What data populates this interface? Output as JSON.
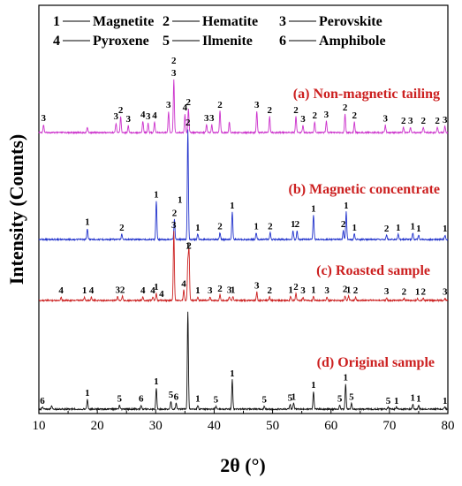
{
  "legend": {
    "row1": [
      {
        "num": "1",
        "name": "Magnetite"
      },
      {
        "num": "2",
        "name": "Hematite"
      },
      {
        "num": "3",
        "name": "Perovskite"
      }
    ],
    "row2": [
      {
        "num": "4",
        "name": "Pyroxene"
      },
      {
        "num": "5",
        "name": "Ilmenite"
      },
      {
        "num": "6",
        "name": "Amphibole"
      }
    ]
  },
  "chart_data": {
    "type": "line",
    "title": "",
    "xlabel": "2θ (°)",
    "ylabel": "Intensity (Counts)",
    "xlim": [
      10,
      80
    ],
    "xticks": [
      10,
      20,
      30,
      40,
      50,
      60,
      70,
      80
    ],
    "grid": false,
    "series": [
      {
        "name": "(a) Non-magnetic tailing",
        "color": "#cc33cc",
        "label_color": "#cc2020",
        "x": [
          10.8,
          18.3,
          23.2,
          24.0,
          25.3,
          27.8,
          28.7,
          29.8,
          32.2,
          33.1,
          35.0,
          35.6,
          38.7,
          39.6,
          41.0,
          42.6,
          47.3,
          49.5,
          54.0,
          55.2,
          57.2,
          59.2,
          62.4,
          64.0,
          69.3,
          72.4,
          73.6,
          75.8,
          78.2,
          79.5
        ],
        "height": [
          0.15,
          0.1,
          0.18,
          0.3,
          0.13,
          0.22,
          0.18,
          0.2,
          0.4,
          1.0,
          0.35,
          0.45,
          0.15,
          0.15,
          0.4,
          0.2,
          0.4,
          0.3,
          0.3,
          0.13,
          0.2,
          0.22,
          0.35,
          0.2,
          0.14,
          0.1,
          0.1,
          0.1,
          0.1,
          0.12
        ]
      },
      {
        "name": "(b) Magnetic concentrate",
        "color": "#2233cc",
        "label_color": "#cc2020",
        "x": [
          18.3,
          24.2,
          30.1,
          33.2,
          35.5,
          37.2,
          41.0,
          43.1,
          47.2,
          49.6,
          53.5,
          54.2,
          57.0,
          62.1,
          62.6,
          64.0,
          69.5,
          71.5,
          74.0,
          75.0,
          79.5
        ],
        "height": [
          0.1,
          0.05,
          0.35,
          0.18,
          1.0,
          0.05,
          0.06,
          0.25,
          0.06,
          0.06,
          0.08,
          0.08,
          0.22,
          0.08,
          0.25,
          0.05,
          0.04,
          0.05,
          0.06,
          0.04,
          0.04
        ]
      },
      {
        "name": "(c) Roasted sample",
        "color": "#cc2222",
        "label_color": "#cc2020",
        "x": [
          13.8,
          17.8,
          19.0,
          23.5,
          24.3,
          27.8,
          29.5,
          30.1,
          33.1,
          34.8,
          35.5,
          35.7,
          37.2,
          39.3,
          41.0,
          42.6,
          43.2,
          47.3,
          49.5,
          53.1,
          54.0,
          55.2,
          57.0,
          59.3,
          62.4,
          63.0,
          64.2,
          69.5,
          72.5,
          74.8,
          75.8,
          79.5
        ],
        "height": [
          0.05,
          0.05,
          0.05,
          0.06,
          0.06,
          0.05,
          0.05,
          0.1,
          1.0,
          0.15,
          0.55,
          0.7,
          0.05,
          0.05,
          0.08,
          0.06,
          0.06,
          0.12,
          0.05,
          0.06,
          0.1,
          0.05,
          0.06,
          0.05,
          0.07,
          0.06,
          0.05,
          0.04,
          0.03,
          0.03,
          0.03,
          0.03
        ]
      },
      {
        "name": "(d) Original sample",
        "color": "#111111",
        "label_color": "#cc2020",
        "x": [
          10.6,
          12.2,
          18.3,
          23.8,
          27.5,
          30.1,
          32.6,
          33.5,
          35.5,
          37.2,
          40.3,
          43.1,
          48.6,
          53.0,
          53.6,
          57.0,
          61.5,
          62.5,
          63.5,
          69.8,
          71.2,
          74.0,
          75.0,
          79.5
        ],
        "height": [
          0.02,
          0.03,
          0.1,
          0.04,
          0.04,
          0.22,
          0.08,
          0.06,
          1.0,
          0.04,
          0.03,
          0.3,
          0.03,
          0.05,
          0.06,
          0.18,
          0.04,
          0.26,
          0.06,
          0.02,
          0.02,
          0.05,
          0.04,
          0.02
        ]
      }
    ],
    "peak_annotations": [
      [
        {
          "x": 10.8,
          "label": "3"
        },
        {
          "x": 23.2,
          "label": "3"
        },
        {
          "x": 24.0,
          "label": "2"
        },
        {
          "x": 25.3,
          "label": "3"
        },
        {
          "x": 27.8,
          "label": "4"
        },
        {
          "x": 28.7,
          "label": "3"
        },
        {
          "x": 29.8,
          "label": "4"
        },
        {
          "x": 32.2,
          "label": "3"
        },
        {
          "x": 33.1,
          "label": "2",
          "offset": 14
        },
        {
          "x": 33.1,
          "label": "3"
        },
        {
          "x": 35.0,
          "label": "4"
        },
        {
          "x": 35.6,
          "label": "2"
        },
        {
          "x": 38.7,
          "label": "3"
        },
        {
          "x": 39.6,
          "label": "3"
        },
        {
          "x": 41.0,
          "label": "2"
        },
        {
          "x": 47.3,
          "label": "3"
        },
        {
          "x": 49.5,
          "label": "2"
        },
        {
          "x": 54.0,
          "label": "2"
        },
        {
          "x": 55.2,
          "label": "3"
        },
        {
          "x": 57.2,
          "label": "2"
        },
        {
          "x": 59.2,
          "label": "3"
        },
        {
          "x": 62.4,
          "label": "2"
        },
        {
          "x": 64.0,
          "label": "2"
        },
        {
          "x": 69.3,
          "label": "3"
        },
        {
          "x": 72.4,
          "label": "2"
        },
        {
          "x": 73.6,
          "label": "3"
        },
        {
          "x": 75.8,
          "label": "2"
        },
        {
          "x": 78.2,
          "label": "2"
        },
        {
          "x": 79.5,
          "label": "3"
        }
      ],
      [
        {
          "x": 18.3,
          "label": "1"
        },
        {
          "x": 24.2,
          "label": "2"
        },
        {
          "x": 30.1,
          "label": "1"
        },
        {
          "x": 33.2,
          "label": "2"
        },
        {
          "x": 35.5,
          "label": "1",
          "offset": 0,
          "dx": -9,
          "yfrac": 0.35
        },
        {
          "x": 35.5,
          "label": "2"
        },
        {
          "x": 37.2,
          "label": "1"
        },
        {
          "x": 41.0,
          "label": "2"
        },
        {
          "x": 43.1,
          "label": "1"
        },
        {
          "x": 47.2,
          "label": "1"
        },
        {
          "x": 49.6,
          "label": "2"
        },
        {
          "x": 53.5,
          "label": "1"
        },
        {
          "x": 54.2,
          "label": "2"
        },
        {
          "x": 57.0,
          "label": "1"
        },
        {
          "x": 62.1,
          "label": "2"
        },
        {
          "x": 62.6,
          "label": "1"
        },
        {
          "x": 64.0,
          "label": "1"
        },
        {
          "x": 69.5,
          "label": "2"
        },
        {
          "x": 71.5,
          "label": "1"
        },
        {
          "x": 74.0,
          "label": "1"
        },
        {
          "x": 75.0,
          "label": "1"
        },
        {
          "x": 79.5,
          "label": "1"
        }
      ],
      [
        {
          "x": 13.8,
          "label": "4"
        },
        {
          "x": 17.8,
          "label": "1"
        },
        {
          "x": 19.0,
          "label": "4"
        },
        {
          "x": 23.5,
          "label": "3"
        },
        {
          "x": 24.3,
          "label": "2"
        },
        {
          "x": 27.8,
          "label": "4"
        },
        {
          "x": 29.5,
          "label": "4"
        },
        {
          "x": 30.1,
          "label": "1"
        },
        {
          "x": 31.0,
          "label": "4"
        },
        {
          "x": 33.1,
          "label": "3"
        },
        {
          "x": 34.8,
          "label": "4"
        },
        {
          "x": 35.5,
          "label": "1"
        },
        {
          "x": 35.7,
          "label": "2"
        },
        {
          "x": 37.2,
          "label": "1"
        },
        {
          "x": 39.3,
          "label": "3"
        },
        {
          "x": 41.0,
          "label": "2"
        },
        {
          "x": 42.6,
          "label": "3"
        },
        {
          "x": 43.2,
          "label": "1"
        },
        {
          "x": 47.3,
          "label": "3"
        },
        {
          "x": 49.5,
          "label": "2"
        },
        {
          "x": 53.1,
          "label": "1"
        },
        {
          "x": 54.0,
          "label": "2"
        },
        {
          "x": 55.2,
          "label": "3"
        },
        {
          "x": 57.0,
          "label": "1"
        },
        {
          "x": 59.3,
          "label": "3"
        },
        {
          "x": 62.4,
          "label": "2"
        },
        {
          "x": 63.0,
          "label": "1"
        },
        {
          "x": 64.2,
          "label": "2"
        },
        {
          "x": 69.5,
          "label": "3"
        },
        {
          "x": 72.5,
          "label": "2"
        },
        {
          "x": 74.8,
          "label": "1"
        },
        {
          "x": 75.8,
          "label": "2"
        },
        {
          "x": 79.5,
          "label": "3"
        }
      ],
      [
        {
          "x": 10.6,
          "label": "6"
        },
        {
          "x": 18.3,
          "label": "1"
        },
        {
          "x": 23.8,
          "label": "5"
        },
        {
          "x": 27.5,
          "label": "6"
        },
        {
          "x": 30.1,
          "label": "1"
        },
        {
          "x": 32.6,
          "label": "5"
        },
        {
          "x": 33.5,
          "label": "6"
        },
        {
          "x": 37.2,
          "label": "1"
        },
        {
          "x": 40.3,
          "label": "5"
        },
        {
          "x": 43.1,
          "label": "1"
        },
        {
          "x": 48.6,
          "label": "5"
        },
        {
          "x": 53.0,
          "label": "5"
        },
        {
          "x": 53.6,
          "label": "1"
        },
        {
          "x": 57.0,
          "label": "1"
        },
        {
          "x": 61.5,
          "label": "5"
        },
        {
          "x": 62.5,
          "label": "1"
        },
        {
          "x": 63.5,
          "label": "5"
        },
        {
          "x": 69.8,
          "label": "5"
        },
        {
          "x": 71.2,
          "label": "1"
        },
        {
          "x": 74.0,
          "label": "1"
        },
        {
          "x": 75.0,
          "label": "1"
        },
        {
          "x": 79.5,
          "label": "1"
        }
      ]
    ]
  }
}
